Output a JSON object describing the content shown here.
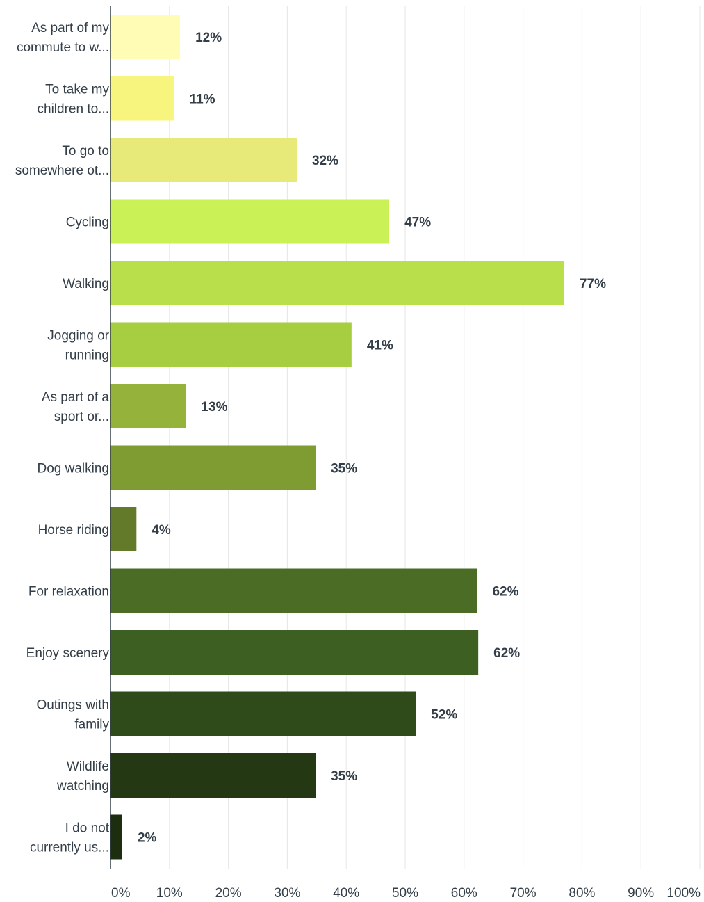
{
  "chart_data": {
    "type": "bar",
    "orientation": "horizontal",
    "categories": [
      [
        "As part of my",
        "commute to w..."
      ],
      [
        "To take my",
        "children to..."
      ],
      [
        "To go to",
        "somewhere ot..."
      ],
      [
        "Cycling"
      ],
      [
        "Walking"
      ],
      [
        "Jogging or",
        "running"
      ],
      [
        "As part of a",
        "sport or..."
      ],
      [
        "Dog walking"
      ],
      [
        "Horse riding"
      ],
      [
        "For relaxation"
      ],
      [
        "Enjoy scenery"
      ],
      [
        "Outings with",
        "family"
      ],
      [
        "Wildlife",
        "watching"
      ],
      [
        "I do not",
        "currently us..."
      ]
    ],
    "values": [
      11.8,
      10.8,
      31.6,
      47.3,
      77.0,
      40.9,
      12.8,
      34.8,
      4.4,
      62.2,
      62.4,
      51.8,
      34.8,
      2.0
    ],
    "value_labels": [
      "12%",
      "11%",
      "32%",
      "47%",
      "77%",
      "41%",
      "13%",
      "35%",
      "4%",
      "62%",
      "62%",
      "52%",
      "35%",
      "2%"
    ],
    "colors": [
      "#fffdb5",
      "#f8f57e",
      "#e7ea78",
      "#caf156",
      "#b9e04b",
      "#a7cd40",
      "#95b23b",
      "#7f9c32",
      "#637a2a",
      "#4a6c25",
      "#3d6022",
      "#2f4b19",
      "#243913",
      "#1c2d10"
    ],
    "xlim": [
      0,
      100
    ],
    "x_ticks": [
      0,
      10,
      20,
      30,
      40,
      50,
      60,
      70,
      80,
      90,
      100
    ],
    "x_tick_labels": [
      "0%",
      "10%",
      "20%",
      "30%",
      "40%",
      "50%",
      "60%",
      "70%",
      "80%",
      "90%",
      "100%"
    ],
    "grid": true,
    "grid_color": "#e6e6e6",
    "axis_color": "#333e48",
    "text_color": "#333e48"
  }
}
